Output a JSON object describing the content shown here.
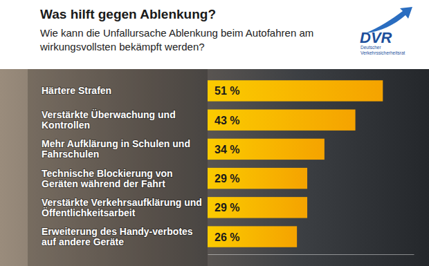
{
  "chart_data": {
    "type": "bar",
    "orientation": "horizontal",
    "title": "Was hilft gegen Ablenkung?",
    "subtitle": "Wie kann die Unfallursache Ablenkung beim Autofahren am wirkungsvollsten bekämpft werden?",
    "annotations": [
      "DVR",
      "Deutscher",
      "Verkehrssicherheitsrat"
    ],
    "categories": [
      "Härtere Strafen",
      "Verstärkte Überwachung und Kontrollen",
      "Mehr Aufklärung in Schulen und Fahrschulen",
      "Technische Blockierung von Geräten während der Fahrt",
      "Verstärkte Verkehrsaufklärung und Öffentlichkeitsarbeit",
      "Erweiterung des Handy-verbotes auf andere Geräte"
    ],
    "values": [
      51,
      43,
      34,
      29,
      29,
      26
    ],
    "value_labels": [
      "51 %",
      "43 %",
      "34 %",
      "29 %",
      "29 %",
      "26 %"
    ],
    "data_labels": true,
    "color": "#f5a300",
    "xlim": [
      0,
      60
    ],
    "grid": false,
    "tick_labels": "y"
  }
}
